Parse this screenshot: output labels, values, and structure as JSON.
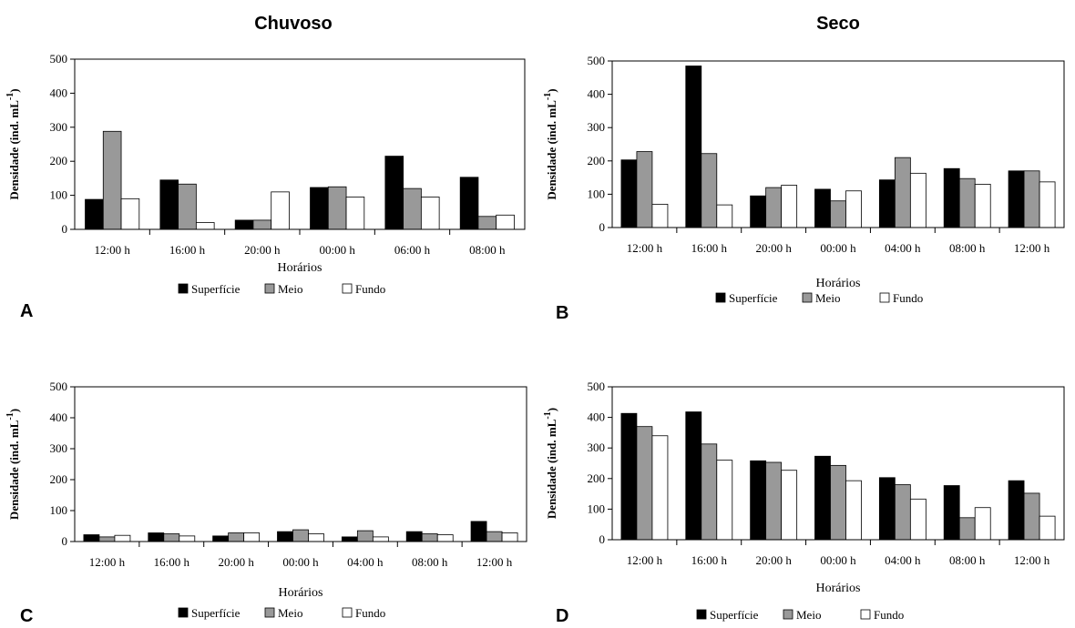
{
  "column_titles": [
    "Chuvoso",
    "Seco"
  ],
  "colors": {
    "superficie": "#000000",
    "meio": "#999999",
    "fundo": "#ffffff"
  },
  "chart_data": [
    {
      "panel": "A",
      "type": "bar",
      "categories": [
        "12:00 h",
        "16:00 h",
        "20:00 h",
        "00:00 h",
        "06:00 h",
        "08:00 h"
      ],
      "series": [
        {
          "name": "Superfície",
          "values": [
            88,
            145,
            27,
            123,
            215,
            153
          ]
        },
        {
          "name": "Meio",
          "values": [
            288,
            133,
            27,
            125,
            120,
            38
          ]
        },
        {
          "name": "Fundo",
          "values": [
            90,
            20,
            110,
            95,
            95,
            42
          ]
        }
      ],
      "xlabel": "Horários",
      "ylabel": "Densidade (ind. mL-1)",
      "ylim": [
        0,
        500
      ],
      "yticks": [
        0,
        100,
        200,
        300,
        400,
        500
      ],
      "legend": "bottom"
    },
    {
      "panel": "B",
      "type": "bar",
      "categories": [
        "12:00 h",
        "16:00 h",
        "20:00 h",
        "00:00 h",
        "04:00 h",
        "08:00 h",
        "12:00 h"
      ],
      "series": [
        {
          "name": "Superfície",
          "values": [
            203,
            485,
            95,
            115,
            143,
            177,
            170
          ]
        },
        {
          "name": "Meio",
          "values": [
            228,
            222,
            120,
            80,
            210,
            147,
            170
          ]
        },
        {
          "name": "Fundo",
          "values": [
            70,
            68,
            127,
            110,
            163,
            130,
            137
          ]
        }
      ],
      "xlabel": "Horários",
      "ylabel": "Densidade (ind. mL-1)",
      "ylim": [
        0,
        500
      ],
      "yticks": [
        0,
        100,
        200,
        300,
        400,
        500
      ],
      "legend": "bottom"
    },
    {
      "panel": "C",
      "type": "bar",
      "categories": [
        "12:00 h",
        "16:00 h",
        "20:00 h",
        "00:00 h",
        "04:00 h",
        "08:00 h",
        "12:00 h"
      ],
      "series": [
        {
          "name": "Superfície",
          "values": [
            22,
            28,
            18,
            32,
            15,
            32,
            65
          ]
        },
        {
          "name": "Meio",
          "values": [
            15,
            25,
            28,
            38,
            35,
            25,
            32
          ]
        },
        {
          "name": "Fundo",
          "values": [
            20,
            18,
            28,
            25,
            15,
            22,
            28
          ]
        }
      ],
      "xlabel": "Horários",
      "ylabel": "Densidade (ind. mL-1)",
      "ylim": [
        0,
        500
      ],
      "yticks": [
        0,
        100,
        200,
        300,
        400,
        500
      ],
      "legend": "bottom"
    },
    {
      "panel": "D",
      "type": "bar",
      "categories": [
        "12:00 h",
        "16:00 h",
        "20:00 h",
        "00:00 h",
        "04:00 h",
        "08:00 h",
        "12:00 h"
      ],
      "series": [
        {
          "name": "Superfície",
          "values": [
            413,
            418,
            258,
            273,
            203,
            177,
            193
          ]
        },
        {
          "name": "Meio",
          "values": [
            370,
            313,
            253,
            243,
            180,
            72,
            152
          ]
        },
        {
          "name": "Fundo",
          "values": [
            340,
            260,
            227,
            193,
            133,
            105,
            77
          ]
        }
      ],
      "xlabel": "Horários",
      "ylabel": "Densidade (ind. mL-1)",
      "ylim": [
        0,
        500
      ],
      "yticks": [
        0,
        100,
        200,
        300,
        400,
        500
      ],
      "legend": "bottom"
    }
  ]
}
